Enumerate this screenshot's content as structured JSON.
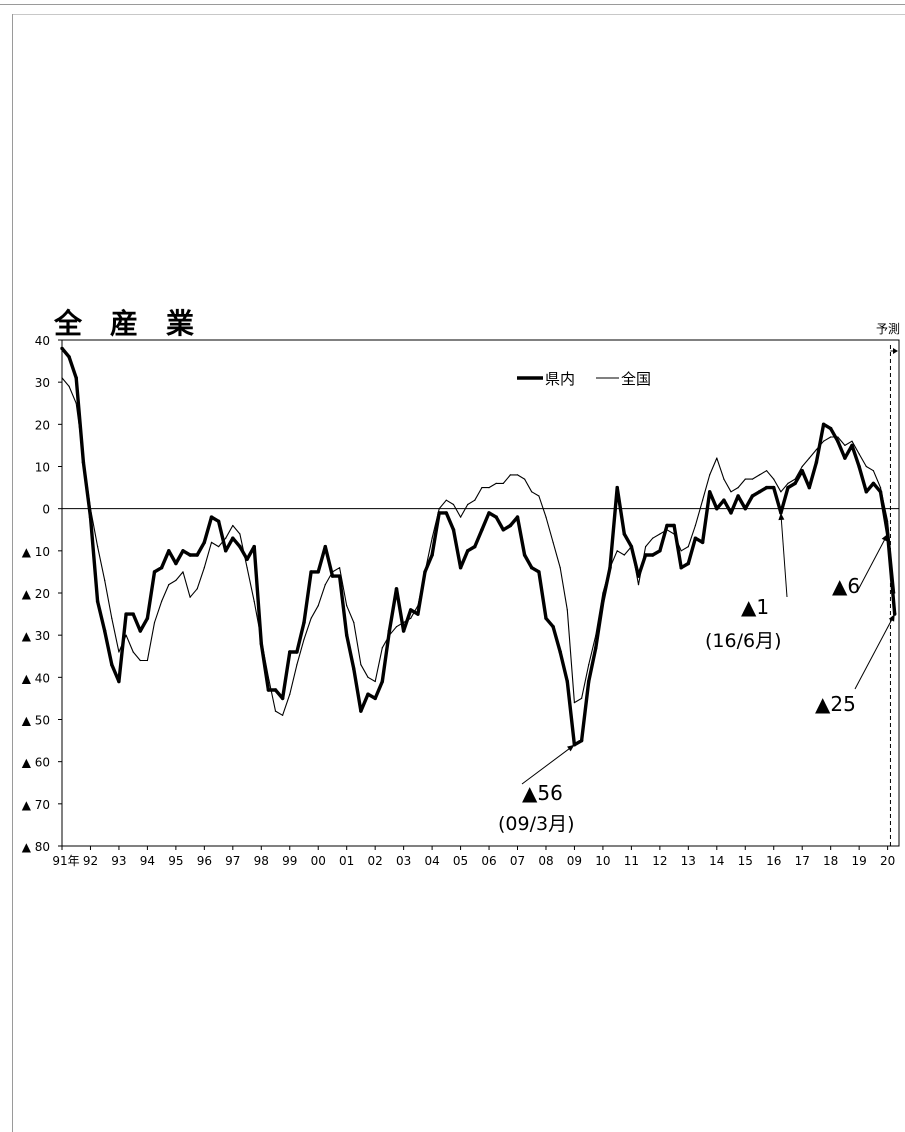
{
  "chart_data": {
    "type": "line",
    "title": "全　産　業",
    "forecast_label": "予測",
    "ylim": [
      -80,
      40
    ],
    "y_ticks": [
      {
        "value": 40,
        "label": "40"
      },
      {
        "value": 30,
        "label": "30"
      },
      {
        "value": 20,
        "label": "20"
      },
      {
        "value": 10,
        "label": "10"
      },
      {
        "value": 0,
        "label": "0"
      },
      {
        "value": -10,
        "label": "▲ 10"
      },
      {
        "value": -20,
        "label": "▲ 20"
      },
      {
        "value": -30,
        "label": "▲ 30"
      },
      {
        "value": -40,
        "label": "▲ 40"
      },
      {
        "value": -50,
        "label": "▲ 50"
      },
      {
        "value": -60,
        "label": "▲ 60"
      },
      {
        "value": -70,
        "label": "▲ 70"
      },
      {
        "value": -80,
        "label": "▲ 80"
      }
    ],
    "x_ticks": [
      "91年",
      "92",
      "93",
      "94",
      "95",
      "96",
      "97",
      "98",
      "99",
      "00",
      "01",
      "02",
      "03",
      "04",
      "05",
      "06",
      "07",
      "08",
      "09",
      "10",
      "11",
      "12",
      "13",
      "14",
      "15",
      "16",
      "17",
      "18",
      "19",
      "20"
    ],
    "x_start_year": 1991,
    "x_end": 2020.4,
    "forecast_x": 2020.1,
    "grid": false,
    "legend_position": "top-center",
    "series": [
      {
        "name": "県内",
        "color": "#000000",
        "style": "bold",
        "points": [
          [
            1991.0,
            38
          ],
          [
            1991.25,
            36
          ],
          [
            1991.5,
            31
          ],
          [
            1991.75,
            11
          ],
          [
            1992.0,
            -2
          ],
          [
            1992.25,
            -22
          ],
          [
            1992.5,
            -29
          ],
          [
            1992.75,
            -37
          ],
          [
            1993.0,
            -41
          ],
          [
            1993.25,
            -25
          ],
          [
            1993.5,
            -25
          ],
          [
            1993.75,
            -29
          ],
          [
            1994.0,
            -26
          ],
          [
            1994.25,
            -15
          ],
          [
            1994.5,
            -14
          ],
          [
            1994.75,
            -10
          ],
          [
            1995.0,
            -13
          ],
          [
            1995.25,
            -10
          ],
          [
            1995.5,
            -11
          ],
          [
            1995.75,
            -11
          ],
          [
            1996.0,
            -8
          ],
          [
            1996.25,
            -2
          ],
          [
            1996.5,
            -3
          ],
          [
            1996.75,
            -10
          ],
          [
            1997.0,
            -7
          ],
          [
            1997.25,
            -9
          ],
          [
            1997.5,
            -12
          ],
          [
            1997.75,
            -9
          ],
          [
            1998.0,
            -32
          ],
          [
            1998.25,
            -43
          ],
          [
            1998.5,
            -43
          ],
          [
            1998.75,
            -45
          ],
          [
            1999.0,
            -34
          ],
          [
            1999.25,
            -34
          ],
          [
            1999.5,
            -27
          ],
          [
            1999.75,
            -15
          ],
          [
            2000.0,
            -15
          ],
          [
            2000.25,
            -9
          ],
          [
            2000.5,
            -16
          ],
          [
            2000.75,
            -16
          ],
          [
            2001.0,
            -30
          ],
          [
            2001.25,
            -38
          ],
          [
            2001.5,
            -48
          ],
          [
            2001.75,
            -44
          ],
          [
            2002.0,
            -45
          ],
          [
            2002.25,
            -41
          ],
          [
            2002.5,
            -29
          ],
          [
            2002.75,
            -19
          ],
          [
            2003.0,
            -29
          ],
          [
            2003.25,
            -24
          ],
          [
            2003.5,
            -25
          ],
          [
            2003.75,
            -15
          ],
          [
            2004.0,
            -11
          ],
          [
            2004.25,
            -1
          ],
          [
            2004.5,
            -1
          ],
          [
            2004.75,
            -5
          ],
          [
            2005.0,
            -14
          ],
          [
            2005.25,
            -10
          ],
          [
            2005.5,
            -9
          ],
          [
            2005.75,
            -5
          ],
          [
            2006.0,
            -1
          ],
          [
            2006.25,
            -2
          ],
          [
            2006.5,
            -5
          ],
          [
            2006.75,
            -4
          ],
          [
            2007.0,
            -2
          ],
          [
            2007.25,
            -11
          ],
          [
            2007.5,
            -14
          ],
          [
            2007.75,
            -15
          ],
          [
            2008.0,
            -26
          ],
          [
            2008.25,
            -28
          ],
          [
            2008.5,
            -34
          ],
          [
            2008.75,
            -41
          ],
          [
            2009.0,
            -56
          ],
          [
            2009.25,
            -55
          ],
          [
            2009.5,
            -41
          ],
          [
            2009.75,
            -33
          ],
          [
            2010.0,
            -22
          ],
          [
            2010.25,
            -14
          ],
          [
            2010.5,
            5
          ],
          [
            2010.75,
            -6
          ],
          [
            2011.0,
            -9
          ],
          [
            2011.25,
            -16
          ],
          [
            2011.5,
            -11
          ],
          [
            2011.75,
            -11
          ],
          [
            2012.0,
            -10
          ],
          [
            2012.25,
            -4
          ],
          [
            2012.5,
            -4
          ],
          [
            2012.75,
            -14
          ],
          [
            2013.0,
            -13
          ],
          [
            2013.25,
            -7
          ],
          [
            2013.5,
            -8
          ],
          [
            2013.75,
            4
          ],
          [
            2014.0,
            0
          ],
          [
            2014.25,
            2
          ],
          [
            2014.5,
            -1
          ],
          [
            2014.75,
            3
          ],
          [
            2015.0,
            0
          ],
          [
            2015.25,
            3
          ],
          [
            2015.5,
            4
          ],
          [
            2015.75,
            5
          ],
          [
            2016.0,
            5
          ],
          [
            2016.25,
            -1
          ],
          [
            2016.5,
            5
          ],
          [
            2016.75,
            6
          ],
          [
            2017.0,
            9
          ],
          [
            2017.25,
            5
          ],
          [
            2017.5,
            11
          ],
          [
            2017.75,
            20
          ],
          [
            2018.0,
            19
          ],
          [
            2018.25,
            16
          ],
          [
            2018.5,
            12
          ],
          [
            2018.75,
            15
          ],
          [
            2019.0,
            10
          ],
          [
            2019.25,
            4
          ],
          [
            2019.5,
            6
          ],
          [
            2019.75,
            4
          ],
          [
            2020.0,
            -6
          ],
          [
            2020.25,
            -25
          ]
        ]
      },
      {
        "name": "全国",
        "color": "#000000",
        "style": "thin",
        "points": [
          [
            1991.0,
            31
          ],
          [
            1991.25,
            29
          ],
          [
            1991.5,
            25
          ],
          [
            1991.75,
            12
          ],
          [
            1992.0,
            0
          ],
          [
            1992.25,
            -9
          ],
          [
            1992.5,
            -17
          ],
          [
            1992.75,
            -26
          ],
          [
            1993.0,
            -34
          ],
          [
            1993.25,
            -30
          ],
          [
            1993.5,
            -34
          ],
          [
            1993.75,
            -36
          ],
          [
            1994.0,
            -36
          ],
          [
            1994.25,
            -27
          ],
          [
            1994.5,
            -22
          ],
          [
            1994.75,
            -18
          ],
          [
            1995.0,
            -17
          ],
          [
            1995.25,
            -15
          ],
          [
            1995.5,
            -21
          ],
          [
            1995.75,
            -19
          ],
          [
            1996.0,
            -14
          ],
          [
            1996.25,
            -8
          ],
          [
            1996.5,
            -9
          ],
          [
            1996.75,
            -7
          ],
          [
            1997.0,
            -4
          ],
          [
            1997.25,
            -6
          ],
          [
            1997.5,
            -14
          ],
          [
            1997.75,
            -22
          ],
          [
            1998.0,
            -31
          ],
          [
            1998.25,
            -40
          ],
          [
            1998.5,
            -48
          ],
          [
            1998.75,
            -49
          ],
          [
            1999.0,
            -44
          ],
          [
            1999.25,
            -37
          ],
          [
            1999.5,
            -31
          ],
          [
            1999.75,
            -26
          ],
          [
            2000.0,
            -23
          ],
          [
            2000.25,
            -18
          ],
          [
            2000.5,
            -15
          ],
          [
            2000.75,
            -14
          ],
          [
            2001.0,
            -23
          ],
          [
            2001.25,
            -27
          ],
          [
            2001.5,
            -37
          ],
          [
            2001.75,
            -40
          ],
          [
            2002.0,
            -41
          ],
          [
            2002.25,
            -33
          ],
          [
            2002.5,
            -30
          ],
          [
            2002.75,
            -28
          ],
          [
            2003.0,
            -27
          ],
          [
            2003.25,
            -26
          ],
          [
            2003.5,
            -23
          ],
          [
            2003.75,
            -15
          ],
          [
            2004.0,
            -7
          ],
          [
            2004.25,
            0
          ],
          [
            2004.5,
            2
          ],
          [
            2004.75,
            1
          ],
          [
            2005.0,
            -2
          ],
          [
            2005.25,
            1
          ],
          [
            2005.5,
            2
          ],
          [
            2005.75,
            5
          ],
          [
            2006.0,
            5
          ],
          [
            2006.25,
            6
          ],
          [
            2006.5,
            6
          ],
          [
            2006.75,
            8
          ],
          [
            2007.0,
            8
          ],
          [
            2007.25,
            7
          ],
          [
            2007.5,
            4
          ],
          [
            2007.75,
            3
          ],
          [
            2008.0,
            -2
          ],
          [
            2008.25,
            -8
          ],
          [
            2008.5,
            -14
          ],
          [
            2008.75,
            -24
          ],
          [
            2009.0,
            -46
          ],
          [
            2009.25,
            -45
          ],
          [
            2009.5,
            -37
          ],
          [
            2009.75,
            -30
          ],
          [
            2010.0,
            -20
          ],
          [
            2010.25,
            -14
          ],
          [
            2010.5,
            -10
          ],
          [
            2010.75,
            -11
          ],
          [
            2011.0,
            -9
          ],
          [
            2011.25,
            -18
          ],
          [
            2011.5,
            -9
          ],
          [
            2011.75,
            -7
          ],
          [
            2012.0,
            -6
          ],
          [
            2012.25,
            -5
          ],
          [
            2012.5,
            -6
          ],
          [
            2012.75,
            -10
          ],
          [
            2013.0,
            -9
          ],
          [
            2013.25,
            -4
          ],
          [
            2013.5,
            2
          ],
          [
            2013.75,
            8
          ],
          [
            2014.0,
            12
          ],
          [
            2014.25,
            7
          ],
          [
            2014.5,
            4
          ],
          [
            2014.75,
            5
          ],
          [
            2015.0,
            7
          ],
          [
            2015.25,
            7
          ],
          [
            2015.5,
            8
          ],
          [
            2015.75,
            9
          ],
          [
            2016.0,
            7
          ],
          [
            2016.25,
            4
          ],
          [
            2016.5,
            6
          ],
          [
            2016.75,
            7
          ],
          [
            2017.0,
            10
          ],
          [
            2017.25,
            12
          ],
          [
            2017.5,
            14
          ],
          [
            2017.75,
            16
          ],
          [
            2018.0,
            17
          ],
          [
            2018.25,
            17
          ],
          [
            2018.5,
            15
          ],
          [
            2018.75,
            16
          ],
          [
            2019.0,
            13
          ],
          [
            2019.25,
            10
          ],
          [
            2019.5,
            9
          ],
          [
            2019.75,
            5
          ],
          [
            2020.0,
            -3
          ],
          [
            2020.25,
            -20
          ]
        ]
      }
    ],
    "annotations": [
      {
        "text": "▲56",
        "sub": "(09/3月)",
        "target": [
          2009.0,
          -56
        ]
      },
      {
        "text": "▲1",
        "sub": "(16/6月)",
        "target": [
          2016.25,
          -1
        ]
      },
      {
        "text": "▲6",
        "sub": "",
        "target": [
          2020.0,
          -6
        ]
      },
      {
        "text": "▲25",
        "sub": "",
        "target": [
          2020.25,
          -25
        ]
      }
    ]
  }
}
